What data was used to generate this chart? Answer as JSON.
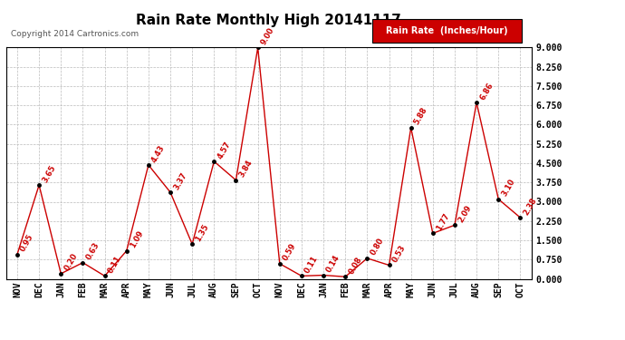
{
  "title": "Rain Rate Monthly High 20141117",
  "copyright": "Copyright 2014 Cartronics.com",
  "legend_label": "Rain Rate  (Inches/Hour)",
  "legend_bg": "#cc0000",
  "legend_text_color": "#ffffff",
  "x_labels": [
    "NOV",
    "DEC",
    "JAN",
    "FEB",
    "MAR",
    "APR",
    "MAY",
    "JUN",
    "JUL",
    "AUG",
    "SEP",
    "OCT",
    "NOV",
    "DEC",
    "JAN",
    "FEB",
    "MAR",
    "APR",
    "MAY",
    "JUN",
    "JUL",
    "AUG",
    "SEP",
    "OCT"
  ],
  "y_values": [
    0.95,
    3.65,
    0.2,
    0.63,
    0.11,
    1.09,
    4.43,
    3.37,
    1.35,
    4.57,
    3.84,
    9.0,
    0.59,
    0.11,
    0.14,
    0.08,
    0.8,
    0.53,
    5.88,
    1.77,
    2.09,
    6.86,
    3.1,
    2.38
  ],
  "line_color": "#cc0000",
  "marker_color": "#000000",
  "label_color": "#cc0000",
  "ylim_min": 0.0,
  "ylim_max": 9.0,
  "yticks": [
    0.0,
    0.75,
    1.5,
    2.25,
    3.0,
    3.75,
    4.5,
    5.25,
    6.0,
    6.75,
    7.5,
    8.25,
    9.0
  ],
  "background_color": "#ffffff",
  "grid_color": "#bbbbbb",
  "title_fontsize": 11,
  "label_fontsize": 6.0,
  "tick_fontsize": 7,
  "copyright_fontsize": 6.5
}
